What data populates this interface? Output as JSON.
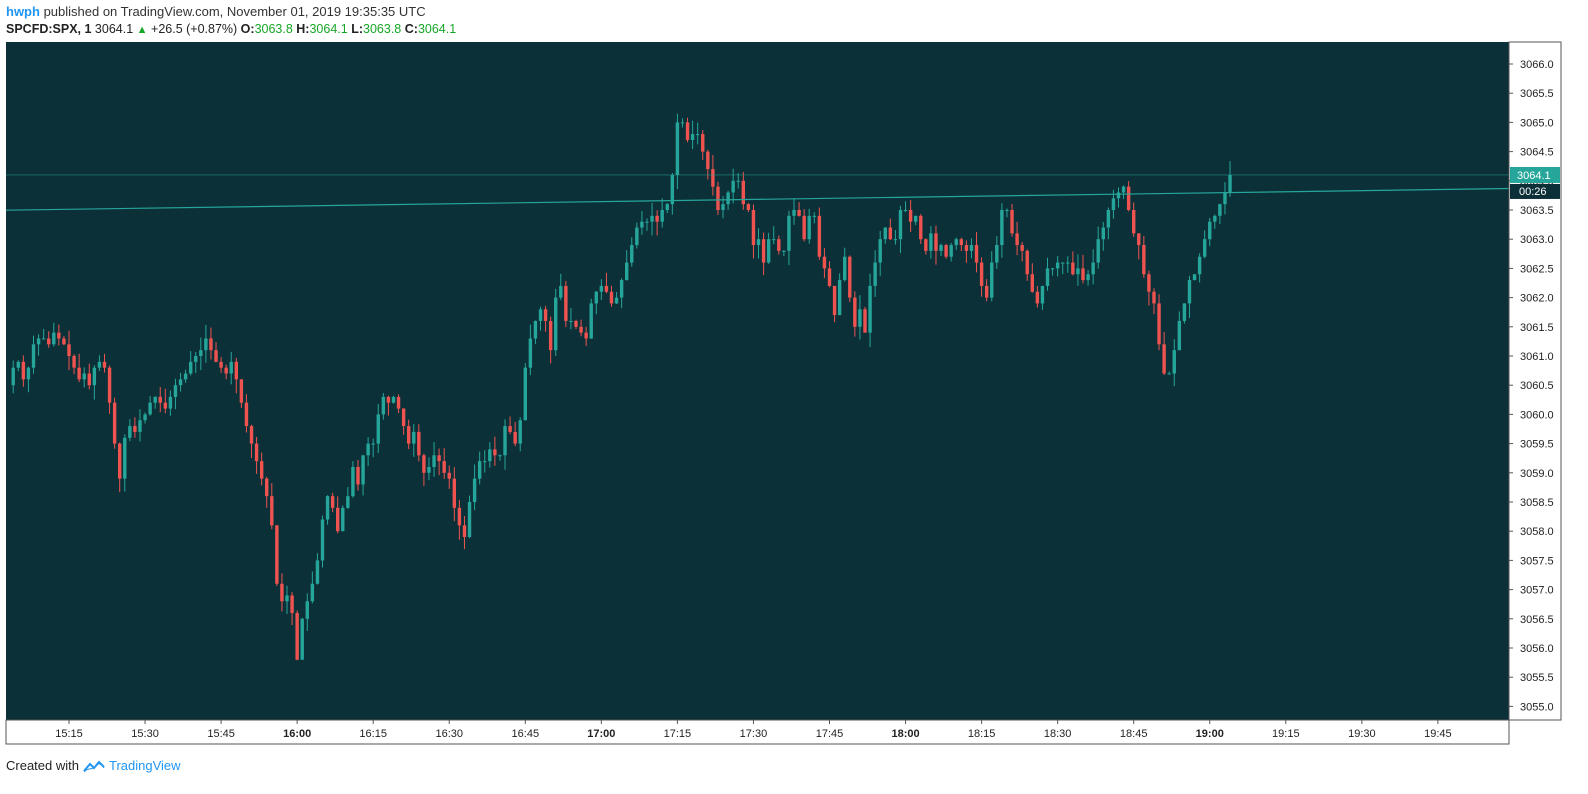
{
  "header": {
    "user": "hwph",
    "published": "published on TradingView.com, November 01, 2019 19:35:35 UTC",
    "symbol": "SPCFD:SPX, 1",
    "last": "3064.1",
    "change": "+26.5 (+0.87%)",
    "o_label": "O:",
    "o_value": "3063.8",
    "h_label": "H:",
    "h_value": "3064.1",
    "l_label": "L:",
    "l_value": "3063.8",
    "c_label": "C:",
    "c_value": "3064.1"
  },
  "footer": {
    "created_with": "Created with",
    "brand": "TradingView"
  },
  "colors": {
    "background": "#0c3038",
    "up": "#26a69a",
    "down": "#ef5350",
    "trendline": "#26a69a",
    "price_badge": "#26a69a"
  },
  "price_badge": {
    "price": "3064.1",
    "countdown": "00:26"
  },
  "chart_data": {
    "type": "candlestick",
    "title": "SPCFD:SPX, 1",
    "x_ticks": [
      {
        "label": "15:15",
        "bold": false
      },
      {
        "label": "15:30",
        "bold": false
      },
      {
        "label": "15:45",
        "bold": false
      },
      {
        "label": "16:00",
        "bold": true
      },
      {
        "label": "16:15",
        "bold": false
      },
      {
        "label": "16:30",
        "bold": false
      },
      {
        "label": "16:45",
        "bold": false
      },
      {
        "label": "17:00",
        "bold": true
      },
      {
        "label": "17:15",
        "bold": false
      },
      {
        "label": "17:30",
        "bold": false
      },
      {
        "label": "17:45",
        "bold": false
      },
      {
        "label": "18:00",
        "bold": true
      },
      {
        "label": "18:15",
        "bold": false
      },
      {
        "label": "18:30",
        "bold": false
      },
      {
        "label": "18:45",
        "bold": false
      },
      {
        "label": "19:00",
        "bold": true
      },
      {
        "label": "19:15",
        "bold": false
      },
      {
        "label": "19:30",
        "bold": false
      },
      {
        "label": "19:45",
        "bold": false
      }
    ],
    "y_ticks": [
      "3066.0",
      "3065.5",
      "3065.0",
      "3064.5",
      "3064.0",
      "3063.5",
      "3063.0",
      "3062.5",
      "3062.0",
      "3061.5",
      "3061.0",
      "3060.5",
      "3060.0",
      "3059.5",
      "3059.0",
      "3058.5",
      "3058.0",
      "3057.5",
      "3057.0",
      "3056.5",
      "3056.0",
      "3055.5",
      "3055.0"
    ],
    "ylim": [
      3054.8,
      3066.3
    ],
    "trendline": {
      "start": [
        "15:05",
        3063.5
      ],
      "end": [
        "19:45",
        3063.85
      ]
    },
    "last_price_line": 3064.1,
    "candles_close": [
      3060.8,
      3060.9,
      3060.6,
      3060.8,
      3061.2,
      3061.3,
      3061.3,
      3061.2,
      3061.4,
      3061.3,
      3061.2,
      3061.0,
      3060.8,
      3060.6,
      3060.7,
      3060.5,
      3060.8,
      3060.9,
      3060.8,
      3060.2,
      3059.5,
      3058.9,
      3059.6,
      3059.8,
      3059.7,
      3059.9,
      3060.0,
      3060.2,
      3060.3,
      3060.2,
      3060.1,
      3060.3,
      3060.5,
      3060.6,
      3060.7,
      3060.9,
      3061.0,
      3061.1,
      3061.3,
      3061.1,
      3060.9,
      3060.8,
      3060.7,
      3060.9,
      3060.6,
      3060.2,
      3059.8,
      3059.5,
      3059.2,
      3058.9,
      3058.6,
      3058.1,
      3057.1,
      3056.8,
      3056.9,
      3056.6,
      3055.8,
      3056.5,
      3056.8,
      3057.1,
      3057.5,
      3058.2,
      3058.6,
      3058.4,
      3058.0,
      3058.4,
      3058.6,
      3059.1,
      3058.8,
      3059.3,
      3059.5,
      3059.5,
      3060.0,
      3060.3,
      3060.2,
      3060.3,
      3060.1,
      3059.8,
      3059.5,
      3059.7,
      3059.3,
      3059.0,
      3059.1,
      3059.3,
      3059.2,
      3059.0,
      3058.9,
      3058.4,
      3058.1,
      3057.9,
      3058.5,
      3058.9,
      3059.2,
      3059.2,
      3059.4,
      3059.3,
      3059.3,
      3059.8,
      3059.7,
      3059.5,
      3059.9,
      3060.8,
      3061.3,
      3061.6,
      3061.8,
      3061.6,
      3061.1,
      3062.0,
      3062.2,
      3061.6,
      3061.6,
      3061.5,
      3061.4,
      3061.3,
      3061.9,
      3062.1,
      3062.2,
      3062.1,
      3061.9,
      3062.0,
      3062.3,
      3062.6,
      3062.9,
      3063.2,
      3063.3,
      3063.3,
      3063.4,
      3063.3,
      3063.5,
      3063.6,
      3064.1,
      3065.0,
      3065.0,
      3064.7,
      3064.8,
      3064.8,
      3064.5,
      3064.2,
      3063.9,
      3063.5,
      3063.6,
      3063.8,
      3064.0,
      3064.0,
      3063.6,
      3063.5,
      3062.9,
      3063.0,
      3062.6,
      3063.0,
      3063.0,
      3062.8,
      3062.8,
      3063.4,
      3063.5,
      3063.4,
      3063.0,
      3063.4,
      3063.4,
      3062.7,
      3062.5,
      3062.2,
      3061.7,
      3062.3,
      3062.7,
      3062.0,
      3061.5,
      3061.8,
      3061.4,
      3062.2,
      3062.6,
      3063.0,
      3063.2,
      3063.0,
      3063.0,
      3063.5,
      3063.5,
      3063.3,
      3063.4,
      3063.0,
      3062.8,
      3063.1,
      3062.8,
      3062.9,
      3062.7,
      3062.9,
      3063.0,
      3062.9,
      3062.8,
      3062.9,
      3062.6,
      3062.2,
      3062.0,
      3062.6,
      3062.9,
      3063.5,
      3063.5,
      3063.1,
      3062.9,
      3062.8,
      3062.4,
      3062.1,
      3061.9,
      3062.2,
      3062.5,
      3062.5,
      3062.6,
      3062.6,
      3062.6,
      3062.4,
      3062.5,
      3062.3,
      3062.4,
      3062.6,
      3063.0,
      3063.2,
      3063.5,
      3063.7,
      3063.8,
      3063.9,
      3063.5,
      3063.1,
      3062.9,
      3062.4,
      3062.1,
      3061.9,
      3061.2,
      3060.7,
      3060.7,
      3061.1,
      3061.6,
      3061.9,
      3062.3,
      3062.4,
      3062.7,
      3063.0,
      3063.3,
      3063.4,
      3063.6,
      3063.8,
      3064.1
    ]
  }
}
